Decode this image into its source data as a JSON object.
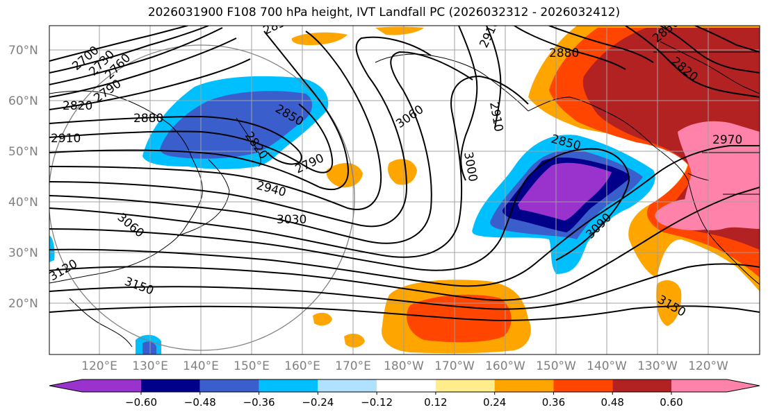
{
  "title": "2026031900 F108 700 hPa height, IVT Landfall PC (2026032312 - 2026032412)",
  "lat_labels": [
    "70°N",
    "60°N",
    "50°N",
    "40°N",
    "30°N",
    "20°N"
  ],
  "lon_labels": [
    "120°E",
    "130°E",
    "140°E",
    "150°E",
    "160°E",
    "170°E",
    "180°W",
    "170°W",
    "160°W",
    "150°W",
    "140°W",
    "130°W",
    "120°W"
  ],
  "contour_labels": [
    "2700",
    "2730",
    "2760",
    "2790",
    "2820",
    "2880",
    "2910",
    "2850",
    "2820",
    "2790",
    "2850",
    "2940",
    "3060",
    "3030",
    "3000",
    "2910",
    "2880",
    "2850",
    "2970",
    "2820",
    "2850",
    "3060",
    "3090",
    "3120",
    "3150",
    "3150",
    "2910"
  ],
  "colorbar": {
    "ticks": [
      "−0.60",
      "−0.48",
      "−0.36",
      "−0.24",
      "−0.12",
      "0.12",
      "0.24",
      "0.36",
      "0.48",
      "0.60"
    ],
    "colors": [
      "#9a32cd",
      "#00008b",
      "#3a5fcd",
      "#00bfff",
      "#b0e2ff",
      "#ffffff",
      "#ffec8b",
      "#ffa500",
      "#ff4500",
      "#b22222",
      "#ff82ab"
    ]
  },
  "colors": {
    "land_outline": "#000000",
    "grid": "#a0a0a0",
    "contour": "#000000"
  }
}
